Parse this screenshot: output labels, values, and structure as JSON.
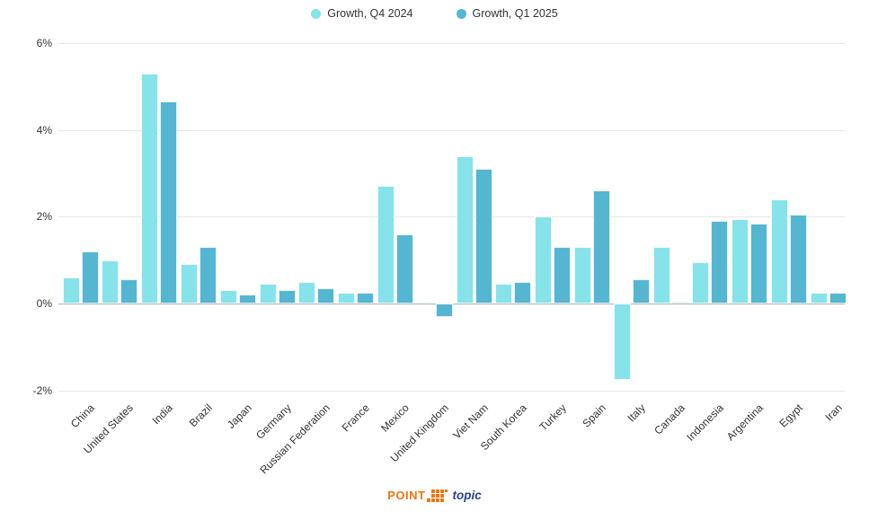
{
  "legend": {
    "items": [
      {
        "label": "Growth, Q4 2024",
        "color": "#86E3EA"
      },
      {
        "label": "Growth, Q1 2025",
        "color": "#55B6D2"
      }
    ]
  },
  "chart_data": {
    "type": "bar",
    "title": "",
    "xlabel": "",
    "ylabel": "",
    "categories": [
      "China",
      "United States",
      "India",
      "Brazil",
      "Japan",
      "Germany",
      "Russian Federation",
      "France",
      "Mexico",
      "United Kingdom",
      "Viet Nam",
      "South Korea",
      "Turkey",
      "Spain",
      "Italy",
      "Canada",
      "Indonesia",
      "Argentina",
      "Egypt",
      "Iran"
    ],
    "series": [
      {
        "name": "Growth, Q4 2024",
        "color": "#86E3EA",
        "values": [
          0.6,
          1.0,
          5.3,
          0.9,
          0.3,
          0.45,
          0.5,
          0.25,
          2.7,
          0.05,
          3.4,
          0.45,
          2.0,
          1.3,
          -1.75,
          1.3,
          0.95,
          1.95,
          2.4,
          0.25
        ]
      },
      {
        "name": "Growth, Q1 2025",
        "color": "#55B6D2",
        "values": [
          1.2,
          0.55,
          4.65,
          1.3,
          0.2,
          0.3,
          0.35,
          0.25,
          1.6,
          -0.3,
          3.1,
          0.5,
          1.3,
          2.6,
          0.55,
          0.05,
          1.9,
          1.85,
          2.05,
          0.25
        ]
      }
    ],
    "ylim": [
      -2,
      6
    ],
    "y_tick_values": [
      6,
      4,
      2,
      0,
      -2
    ],
    "y_tick_labels": [
      "6%",
      "4%",
      "2%",
      "0%",
      "-2%"
    ],
    "grid": true,
    "legend_position": "top-center",
    "colors": {
      "grid": "#e6e6e6",
      "zero_line": "#b3b3b3",
      "tick_text": "#333333"
    }
  },
  "footer": {
    "brand_point": "POINT",
    "brand_topic": "topic",
    "point_color": "#F0750F",
    "topic_color": "#2B3F94"
  }
}
